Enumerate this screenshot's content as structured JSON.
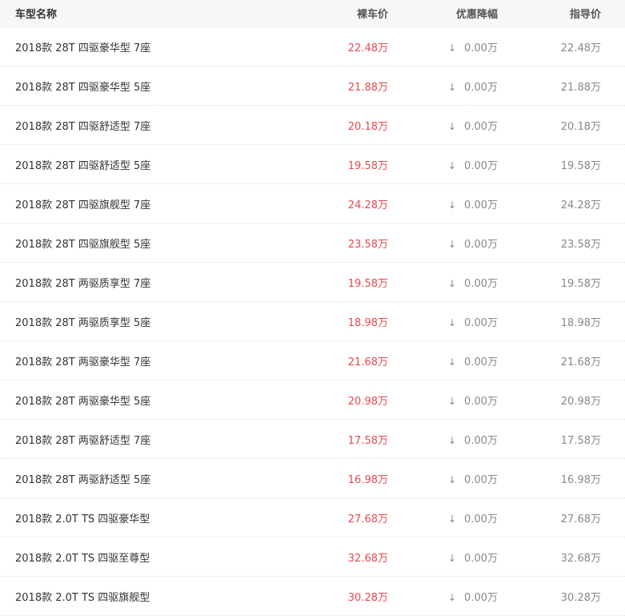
{
  "header": {
    "name": "车型名称",
    "price": "裸车价",
    "discount": "优惠降幅",
    "guide": "指导价"
  },
  "colors": {
    "price": "#e8484e",
    "muted": "#888888"
  },
  "rows": [
    {
      "name": "2018款 28T 四驱豪华型 7座",
      "price": "22.48万",
      "discount": "0.00万",
      "guide": "22.48万"
    },
    {
      "name": "2018款 28T 四驱豪华型 5座",
      "price": "21.88万",
      "discount": "0.00万",
      "guide": "21.88万"
    },
    {
      "name": "2018款 28T 四驱舒适型 7座",
      "price": "20.18万",
      "discount": "0.00万",
      "guide": "20.18万"
    },
    {
      "name": "2018款 28T 四驱舒适型 5座",
      "price": "19.58万",
      "discount": "0.00万",
      "guide": "19.58万"
    },
    {
      "name": "2018款 28T 四驱旗舰型 7座",
      "price": "24.28万",
      "discount": "0.00万",
      "guide": "24.28万"
    },
    {
      "name": "2018款 28T 四驱旗舰型 5座",
      "price": "23.58万",
      "discount": "0.00万",
      "guide": "23.58万"
    },
    {
      "name": "2018款 28T 两驱质享型 7座",
      "price": "19.58万",
      "discount": "0.00万",
      "guide": "19.58万"
    },
    {
      "name": "2018款 28T 两驱质享型 5座",
      "price": "18.98万",
      "discount": "0.00万",
      "guide": "18.98万"
    },
    {
      "name": "2018款 28T 两驱豪华型 7座",
      "price": "21.68万",
      "discount": "0.00万",
      "guide": "21.68万"
    },
    {
      "name": "2018款 28T 两驱豪华型 5座",
      "price": "20.98万",
      "discount": "0.00万",
      "guide": "20.98万"
    },
    {
      "name": "2018款 28T 两驱舒适型 7座",
      "price": "17.58万",
      "discount": "0.00万",
      "guide": "17.58万"
    },
    {
      "name": "2018款 28T 两驱舒适型 5座",
      "price": "16.98万",
      "discount": "0.00万",
      "guide": "16.98万"
    },
    {
      "name": "2018款 2.0T TS 四驱豪华型",
      "price": "27.68万",
      "discount": "0.00万",
      "guide": "27.68万"
    },
    {
      "name": "2018款 2.0T TS 四驱至尊型",
      "price": "32.68万",
      "discount": "0.00万",
      "guide": "32.68万"
    },
    {
      "name": "2018款 2.0T TS 四驱旗舰型",
      "price": "30.28万",
      "discount": "0.00万",
      "guide": "30.28万"
    }
  ]
}
